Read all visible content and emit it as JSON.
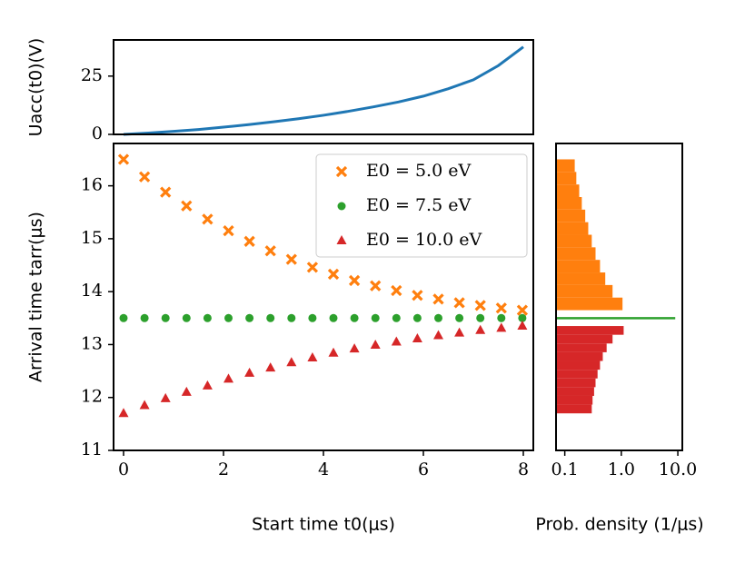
{
  "chart_data": [
    {
      "type": "line",
      "y_label": "Uacc(t0)(V)",
      "x": [
        0,
        0.5,
        1,
        1.5,
        2,
        2.5,
        3,
        3.5,
        4,
        4.5,
        5,
        5.5,
        6,
        6.5,
        7,
        7.5,
        8
      ],
      "series": [
        {
          "name": "Uacc",
          "color": "#1f77b4",
          "values": [
            0,
            0.6,
            1.3,
            2.1,
            3.1,
            4.2,
            5.4,
            6.7,
            8.2,
            9.9,
            11.8,
            13.9,
            16.4,
            19.6,
            23.4,
            29.5,
            37.5
          ]
        }
      ],
      "xlim": [
        -0.2,
        8.2
      ],
      "ylim": [
        0,
        40.5
      ],
      "yticks": [
        0,
        25
      ]
    },
    {
      "type": "scatter",
      "x_label": "Start time t0(μs)",
      "y_label": "Arrival time tarr(μs)",
      "x": [
        0,
        0.42,
        0.84,
        1.26,
        1.68,
        2.1,
        2.52,
        2.94,
        3.36,
        3.78,
        4.2,
        4.62,
        5.04,
        5.46,
        5.88,
        6.3,
        6.72,
        7.14,
        7.56,
        7.98
      ],
      "series": [
        {
          "name": "E0 = 5.0 eV",
          "color": "#ff7f0e",
          "marker": "x",
          "values": [
            16.5,
            16.17,
            15.88,
            15.62,
            15.37,
            15.15,
            14.95,
            14.77,
            14.61,
            14.46,
            14.33,
            14.21,
            14.11,
            14.02,
            13.93,
            13.86,
            13.79,
            13.74,
            13.69,
            13.65
          ]
        },
        {
          "name": "E0 = 7.5 eV",
          "color": "#2ca02c",
          "marker": "circle",
          "values": [
            13.5,
            13.5,
            13.5,
            13.5,
            13.5,
            13.5,
            13.5,
            13.5,
            13.5,
            13.5,
            13.5,
            13.5,
            13.5,
            13.5,
            13.5,
            13.5,
            13.5,
            13.5,
            13.5,
            13.5
          ]
        },
        {
          "name": "E0 = 10.0 eV",
          "color": "#d62728",
          "marker": "triangle",
          "values": [
            11.7,
            11.85,
            11.98,
            12.1,
            12.22,
            12.35,
            12.46,
            12.56,
            12.66,
            12.75,
            12.84,
            12.92,
            12.99,
            13.05,
            13.11,
            13.17,
            13.22,
            13.27,
            13.31,
            13.35
          ]
        }
      ],
      "xlim": [
        -0.2,
        8.2
      ],
      "xticks": [
        0,
        2,
        4,
        6,
        8
      ],
      "ylim": [
        11,
        16.8
      ],
      "yticks": [
        11,
        12,
        13,
        14,
        15,
        16
      ],
      "legend": "upper right"
    },
    {
      "type": "histogram",
      "orientation": "horizontal",
      "x_label": "Prob. density (1/μs)",
      "log_x": true,
      "series": [
        {
          "name": "E0 = 5.0 eV",
          "color": "#ff7f0e",
          "bins": [
            13.65,
            13.8875,
            14.125,
            14.3625,
            14.6,
            14.8375,
            15.075,
            15.3125,
            15.55,
            15.7875,
            16.025,
            16.2625,
            16.5
          ],
          "values": [
            1.05,
            0.7,
            0.52,
            0.42,
            0.35,
            0.3,
            0.26,
            0.23,
            0.2,
            0.18,
            0.16,
            0.15
          ]
        },
        {
          "name": "E0 = 7.5 eV",
          "color": "#2ca02c",
          "bins": [
            13.48,
            13.52
          ],
          "values": [
            9
          ]
        },
        {
          "name": "E0 = 10.0 eV",
          "color": "#d62728",
          "bins": [
            11.7,
            11.865,
            12.03,
            12.195,
            12.36,
            12.525,
            12.69,
            12.855,
            13.02,
            13.185,
            13.35
          ],
          "values": [
            0.3,
            0.31,
            0.33,
            0.35,
            0.38,
            0.42,
            0.47,
            0.55,
            0.7,
            1.1
          ]
        }
      ],
      "xlim": [
        0.07,
        12
      ],
      "xticks": [
        {
          "value": 0.1,
          "label": "0.1"
        },
        {
          "value": 1,
          "label": "1.0"
        },
        {
          "value": 10,
          "label": "10.0"
        }
      ],
      "ylim": [
        11,
        16.8
      ]
    }
  ]
}
